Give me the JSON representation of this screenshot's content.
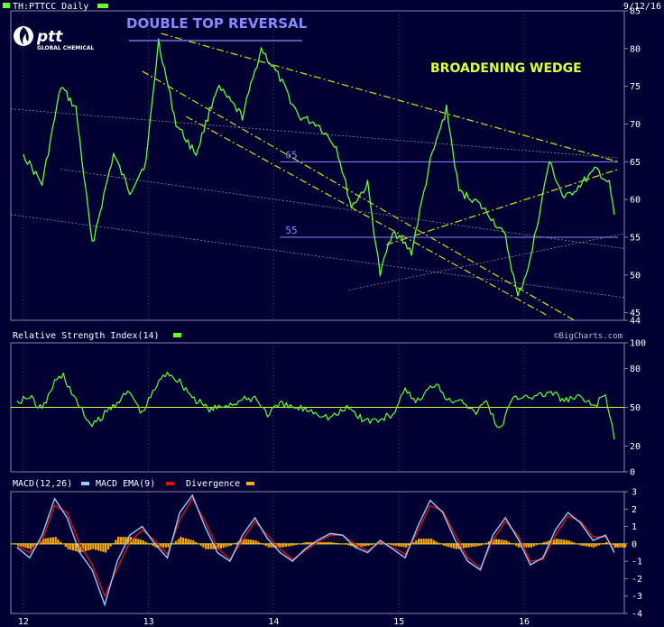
{
  "header": {
    "symbol_label": "TH:PTTCC Daily",
    "date": "9/12/16",
    "logo_word": "ptt",
    "logo_sub": "GLOBAL CHEMICAL",
    "watermark": "©BigCharts.com"
  },
  "colors": {
    "background": "#000033",
    "price": "#66ff33",
    "annotation_blue": "#8888ff",
    "annotation_yellow": "#ddff33",
    "trendline": "#dddd00",
    "gridline": "#9999aa",
    "macd": "#99ccff",
    "macd_ema": "#dd1111",
    "divergence": "#ffaa00"
  },
  "icons": {
    "logo": "ptt-flame-logo"
  },
  "chart_data": [
    {
      "type": "line",
      "panel": "price",
      "series": [
        {
          "name": "TH:PTTCC Daily",
          "x": [
            12.0,
            12.15,
            12.3,
            12.42,
            12.55,
            12.72,
            12.85,
            12.98,
            13.08,
            13.22,
            13.38,
            13.55,
            13.75,
            13.9,
            14.05,
            14.2,
            14.35,
            14.5,
            14.62,
            14.75,
            14.85,
            14.95,
            15.1,
            15.25,
            15.38,
            15.48,
            15.6,
            15.72,
            15.85,
            15.95,
            16.05,
            16.2,
            16.32,
            16.45,
            16.58,
            16.68,
            16.72
          ],
          "values": [
            66,
            62,
            75,
            72,
            54,
            66,
            61,
            65,
            81,
            70,
            66,
            75,
            71,
            80,
            76,
            71,
            70,
            67,
            59,
            62,
            50,
            56,
            53,
            65,
            72,
            61,
            60,
            58,
            55,
            47,
            52,
            65,
            60,
            62,
            64,
            62,
            58
          ]
        }
      ],
      "ylim": [
        44,
        85
      ],
      "yticks": [
        44,
        45,
        50,
        55,
        60,
        65,
        70,
        75,
        80,
        85
      ],
      "xlim": [
        11.9,
        16.8
      ],
      "xticks": [
        12,
        13,
        14,
        15,
        16
      ],
      "hlines": [
        {
          "value": 65,
          "label": "65",
          "x_from": 14.05,
          "x_to": 16.75
        },
        {
          "value": 55,
          "label": "55",
          "x_from": 14.05,
          "x_to": 16.75
        }
      ],
      "trendlines": [
        {
          "from": [
            13.1,
            82
          ],
          "to": [
            16.75,
            65
          ]
        },
        {
          "from": [
            12.95,
            77
          ],
          "to": [
            16.4,
            44
          ]
        },
        {
          "from": [
            13.3,
            71
          ],
          "to": [
            16.2,
            44.5
          ]
        },
        {
          "from": [
            14.9,
            54
          ],
          "to": [
            16.75,
            64
          ]
        },
        {
          "from": [
            11.9,
            72
          ],
          "to": [
            16.75,
            65.5
          ]
        },
        {
          "from": [
            12.3,
            64
          ],
          "to": [
            16.8,
            53.5
          ]
        },
        {
          "from": [
            11.9,
            58
          ],
          "to": [
            16.8,
            47
          ]
        },
        {
          "from": [
            14.6,
            48
          ],
          "to": [
            16.8,
            55.5
          ]
        }
      ],
      "annotations": [
        {
          "text": "DOUBLE TOP REVERSAL",
          "color": "blue"
        },
        {
          "text": "BROADENING WEDGE",
          "color": "yellow"
        }
      ]
    },
    {
      "type": "line",
      "panel": "rsi",
      "title": "Relative Strength Index(14)",
      "series": [
        {
          "name": "Relative Strength Index(14)",
          "x": [
            11.95,
            12.05,
            12.15,
            12.25,
            12.32,
            12.42,
            12.55,
            12.65,
            12.75,
            12.85,
            12.95,
            13.05,
            13.15,
            13.25,
            13.38,
            13.5,
            13.62,
            13.75,
            13.85,
            13.95,
            14.05,
            14.15,
            14.3,
            14.45,
            14.6,
            14.72,
            14.85,
            14.95,
            15.05,
            15.15,
            15.3,
            15.4,
            15.5,
            15.6,
            15.7,
            15.8,
            15.9,
            16.0,
            16.1,
            16.2,
            16.32,
            16.45,
            16.55,
            16.65,
            16.72
          ],
          "values": [
            55,
            58,
            48,
            70,
            75,
            55,
            35,
            45,
            55,
            62,
            45,
            65,
            78,
            70,
            55,
            48,
            52,
            55,
            58,
            45,
            52,
            50,
            48,
            42,
            50,
            40,
            40,
            45,
            62,
            55,
            70,
            55,
            58,
            45,
            55,
            32,
            55,
            60,
            58,
            62,
            55,
            58,
            50,
            60,
            25
          ]
        }
      ],
      "ylim": [
        0,
        100
      ],
      "yticks": [
        0,
        20,
        50,
        80,
        100
      ],
      "hline": 50
    },
    {
      "type": "line",
      "panel": "macd",
      "legend": [
        "MACD(12,26)",
        "MACD EMA(9)",
        "Divergence"
      ],
      "x": [
        11.95,
        12.05,
        12.15,
        12.25,
        12.35,
        12.45,
        12.55,
        12.65,
        12.75,
        12.85,
        12.95,
        13.05,
        13.15,
        13.25,
        13.35,
        13.45,
        13.55,
        13.65,
        13.75,
        13.85,
        13.95,
        14.05,
        14.15,
        14.25,
        14.35,
        14.45,
        14.55,
        14.65,
        14.75,
        14.85,
        14.95,
        15.05,
        15.15,
        15.25,
        15.35,
        15.45,
        15.55,
        15.65,
        15.75,
        15.85,
        15.95,
        16.05,
        16.15,
        16.25,
        16.35,
        16.45,
        16.55,
        16.65,
        16.72
      ],
      "series": [
        {
          "name": "MACD(12,26)",
          "values": [
            -0.2,
            -0.8,
            0.5,
            2.6,
            1.5,
            -0.5,
            -1.5,
            -3.5,
            -1.0,
            0.5,
            1.0,
            0.0,
            -0.8,
            1.8,
            2.8,
            1.0,
            -0.5,
            -1.0,
            0.5,
            1.5,
            0.3,
            -0.5,
            -1.0,
            -0.3,
            0.2,
            0.6,
            0.5,
            -0.2,
            -0.5,
            0.2,
            -0.3,
            -0.8,
            1.0,
            2.5,
            1.8,
            0.2,
            -1.0,
            -1.5,
            0.5,
            1.5,
            0.3,
            -1.2,
            -0.8,
            0.8,
            1.8,
            1.2,
            0.2,
            0.5,
            -0.5
          ]
        },
        {
          "name": "MACD EMA(9)",
          "values": [
            -0.1,
            -0.5,
            0.2,
            2.2,
            1.8,
            0.0,
            -1.2,
            -3.0,
            -1.4,
            0.1,
            0.8,
            0.2,
            -0.6,
            1.4,
            2.6,
            1.3,
            -0.2,
            -0.9,
            0.2,
            1.3,
            0.5,
            -0.3,
            -0.9,
            -0.4,
            0.1,
            0.5,
            0.5,
            0.0,
            -0.4,
            0.1,
            -0.2,
            -0.6,
            0.7,
            2.2,
            1.9,
            0.5,
            -0.8,
            -1.4,
            0.2,
            1.3,
            0.5,
            -1.0,
            -0.9,
            0.5,
            1.6,
            1.3,
            0.4,
            0.4,
            -0.3
          ]
        },
        {
          "name": "Divergence",
          "values": [
            -0.1,
            -0.3,
            0.3,
            0.4,
            -0.3,
            -0.5,
            -0.3,
            -0.5,
            0.4,
            0.4,
            0.2,
            -0.2,
            -0.2,
            0.4,
            0.2,
            -0.3,
            -0.3,
            -0.1,
            0.3,
            0.2,
            -0.2,
            -0.2,
            -0.1,
            0.1,
            0.1,
            0.1,
            0.0,
            -0.2,
            -0.1,
            0.1,
            -0.1,
            -0.2,
            0.3,
            0.3,
            -0.1,
            -0.3,
            -0.2,
            -0.1,
            0.3,
            0.2,
            -0.2,
            -0.2,
            0.1,
            0.3,
            0.2,
            -0.1,
            -0.2,
            0.1,
            -0.2
          ]
        }
      ],
      "ylim": [
        -4,
        3
      ],
      "yticks": [
        -4,
        -3,
        -2,
        -1,
        0,
        1,
        2,
        3
      ],
      "hline": 0
    }
  ]
}
